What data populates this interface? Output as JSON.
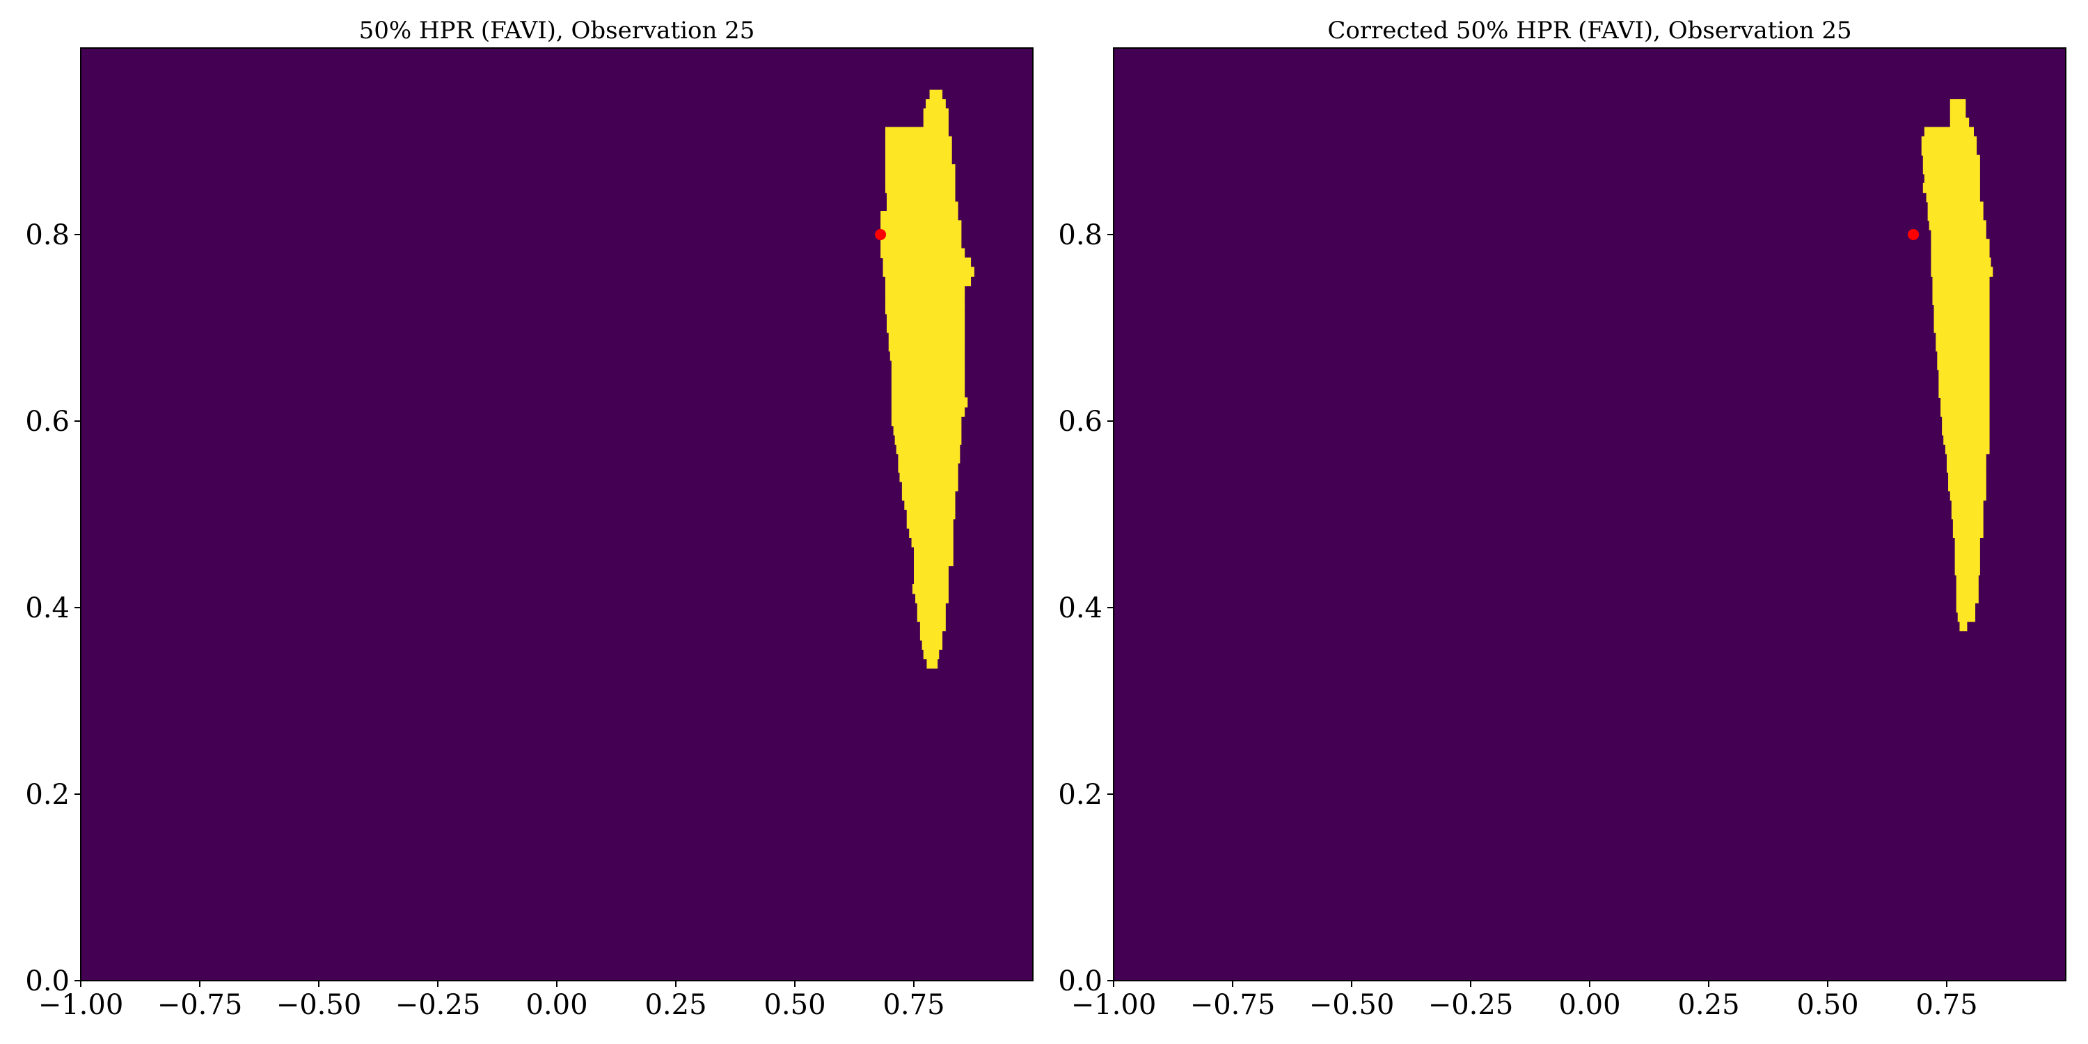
{
  "chart_data": [
    {
      "type": "heatmap",
      "title": "50% HPR (FAVI), Observation 25",
      "xlim": [
        -1.0,
        1.0
      ],
      "ylim": [
        0.0,
        1.0
      ],
      "xticks": [
        -1.0,
        -0.75,
        -0.5,
        -0.25,
        0.0,
        0.25,
        0.5,
        0.75
      ],
      "xtick_labels": [
        "−1.00",
        "−0.75",
        "−0.50",
        "−0.25",
        "0.00",
        "0.25",
        "0.50",
        "0.75"
      ],
      "yticks": [
        0.0,
        0.2,
        0.4,
        0.6,
        0.8
      ],
      "ytick_labels": [
        "0.0",
        "0.2",
        "0.4",
        "0.6",
        "0.8"
      ],
      "grid": false,
      "colors": {
        "background": "#440154",
        "region": "#fde725",
        "point": "#ff0000"
      },
      "region_rows": [
        [
          0.95,
          0.783,
          0.81
        ],
        [
          0.94,
          0.775,
          0.817
        ],
        [
          0.93,
          0.77,
          0.823
        ],
        [
          0.92,
          0.77,
          0.823
        ],
        [
          0.91,
          0.69,
          0.823
        ],
        [
          0.9,
          0.69,
          0.83
        ],
        [
          0.89,
          0.69,
          0.83
        ],
        [
          0.88,
          0.69,
          0.83
        ],
        [
          0.87,
          0.69,
          0.837
        ],
        [
          0.86,
          0.69,
          0.837
        ],
        [
          0.85,
          0.69,
          0.837
        ],
        [
          0.84,
          0.693,
          0.837
        ],
        [
          0.83,
          0.693,
          0.843
        ],
        [
          0.82,
          0.68,
          0.843
        ],
        [
          0.81,
          0.68,
          0.85
        ],
        [
          0.8,
          0.68,
          0.85
        ],
        [
          0.79,
          0.68,
          0.85
        ],
        [
          0.78,
          0.68,
          0.857
        ],
        [
          0.77,
          0.685,
          0.87
        ],
        [
          0.76,
          0.685,
          0.877
        ],
        [
          0.75,
          0.69,
          0.87
        ],
        [
          0.74,
          0.69,
          0.857
        ],
        [
          0.73,
          0.69,
          0.857
        ],
        [
          0.72,
          0.69,
          0.857
        ],
        [
          0.71,
          0.693,
          0.857
        ],
        [
          0.7,
          0.693,
          0.857
        ],
        [
          0.69,
          0.697,
          0.857
        ],
        [
          0.68,
          0.697,
          0.857
        ],
        [
          0.67,
          0.7,
          0.857
        ],
        [
          0.66,
          0.703,
          0.857
        ],
        [
          0.65,
          0.703,
          0.857
        ],
        [
          0.64,
          0.703,
          0.857
        ],
        [
          0.63,
          0.703,
          0.857
        ],
        [
          0.62,
          0.703,
          0.863
        ],
        [
          0.61,
          0.703,
          0.857
        ],
        [
          0.6,
          0.703,
          0.85
        ],
        [
          0.59,
          0.707,
          0.85
        ],
        [
          0.58,
          0.71,
          0.85
        ],
        [
          0.57,
          0.713,
          0.847
        ],
        [
          0.56,
          0.717,
          0.847
        ],
        [
          0.55,
          0.717,
          0.843
        ],
        [
          0.54,
          0.72,
          0.843
        ],
        [
          0.53,
          0.725,
          0.843
        ],
        [
          0.52,
          0.725,
          0.837
        ],
        [
          0.51,
          0.73,
          0.837
        ],
        [
          0.5,
          0.735,
          0.837
        ],
        [
          0.49,
          0.735,
          0.833
        ],
        [
          0.48,
          0.74,
          0.833
        ],
        [
          0.47,
          0.745,
          0.833
        ],
        [
          0.46,
          0.75,
          0.833
        ],
        [
          0.45,
          0.75,
          0.833
        ],
        [
          0.44,
          0.75,
          0.823
        ],
        [
          0.43,
          0.75,
          0.823
        ],
        [
          0.42,
          0.747,
          0.823
        ],
        [
          0.41,
          0.753,
          0.823
        ],
        [
          0.4,
          0.757,
          0.817
        ],
        [
          0.39,
          0.757,
          0.817
        ],
        [
          0.38,
          0.763,
          0.817
        ],
        [
          0.37,
          0.763,
          0.81
        ],
        [
          0.36,
          0.767,
          0.81
        ],
        [
          0.35,
          0.77,
          0.803
        ],
        [
          0.34,
          0.777,
          0.8
        ]
      ],
      "point": {
        "x": 0.68,
        "y": 0.8
      }
    },
    {
      "type": "heatmap",
      "title": "Corrected 50% HPR (FAVI), Observation 25",
      "xlim": [
        -1.0,
        1.0
      ],
      "ylim": [
        0.0,
        1.0
      ],
      "xticks": [
        -1.0,
        -0.75,
        -0.5,
        -0.25,
        0.0,
        0.25,
        0.5,
        0.75
      ],
      "xtick_labels": [
        "−1.00",
        "−0.75",
        "−0.50",
        "−0.25",
        "0.00",
        "0.25",
        "0.50",
        "0.75"
      ],
      "yticks": [
        0.0,
        0.2,
        0.4,
        0.6,
        0.8
      ],
      "ytick_labels": [
        "0.0",
        "0.2",
        "0.4",
        "0.6",
        "0.8"
      ],
      "grid": false,
      "colors": {
        "background": "#440154",
        "region": "#fde725",
        "point": "#ff0000"
      },
      "region_rows": [
        [
          0.94,
          0.757,
          0.79
        ],
        [
          0.93,
          0.757,
          0.79
        ],
        [
          0.92,
          0.757,
          0.797
        ],
        [
          0.91,
          0.703,
          0.807
        ],
        [
          0.9,
          0.697,
          0.813
        ],
        [
          0.89,
          0.697,
          0.813
        ],
        [
          0.88,
          0.7,
          0.82
        ],
        [
          0.87,
          0.7,
          0.82
        ],
        [
          0.86,
          0.703,
          0.82
        ],
        [
          0.85,
          0.7,
          0.82
        ],
        [
          0.84,
          0.707,
          0.82
        ],
        [
          0.83,
          0.71,
          0.827
        ],
        [
          0.82,
          0.71,
          0.827
        ],
        [
          0.81,
          0.713,
          0.833
        ],
        [
          0.8,
          0.717,
          0.833
        ],
        [
          0.79,
          0.717,
          0.84
        ],
        [
          0.78,
          0.717,
          0.84
        ],
        [
          0.77,
          0.717,
          0.843
        ],
        [
          0.76,
          0.717,
          0.847
        ],
        [
          0.75,
          0.72,
          0.84
        ],
        [
          0.74,
          0.72,
          0.84
        ],
        [
          0.73,
          0.72,
          0.84
        ],
        [
          0.72,
          0.723,
          0.84
        ],
        [
          0.71,
          0.723,
          0.84
        ],
        [
          0.7,
          0.723,
          0.84
        ],
        [
          0.69,
          0.727,
          0.84
        ],
        [
          0.68,
          0.727,
          0.84
        ],
        [
          0.67,
          0.73,
          0.84
        ],
        [
          0.66,
          0.73,
          0.84
        ],
        [
          0.65,
          0.733,
          0.84
        ],
        [
          0.64,
          0.733,
          0.84
        ],
        [
          0.63,
          0.733,
          0.84
        ],
        [
          0.62,
          0.737,
          0.84
        ],
        [
          0.61,
          0.737,
          0.84
        ],
        [
          0.6,
          0.74,
          0.84
        ],
        [
          0.59,
          0.74,
          0.84
        ],
        [
          0.58,
          0.743,
          0.84
        ],
        [
          0.57,
          0.747,
          0.84
        ],
        [
          0.56,
          0.75,
          0.833
        ],
        [
          0.55,
          0.75,
          0.833
        ],
        [
          0.54,
          0.753,
          0.833
        ],
        [
          0.53,
          0.753,
          0.833
        ],
        [
          0.52,
          0.757,
          0.833
        ],
        [
          0.51,
          0.76,
          0.827
        ],
        [
          0.5,
          0.76,
          0.827
        ],
        [
          0.49,
          0.763,
          0.827
        ],
        [
          0.48,
          0.763,
          0.827
        ],
        [
          0.47,
          0.767,
          0.82
        ],
        [
          0.46,
          0.767,
          0.82
        ],
        [
          0.45,
          0.767,
          0.82
        ],
        [
          0.44,
          0.767,
          0.82
        ],
        [
          0.43,
          0.77,
          0.817
        ],
        [
          0.42,
          0.77,
          0.817
        ],
        [
          0.41,
          0.77,
          0.817
        ],
        [
          0.4,
          0.77,
          0.81
        ],
        [
          0.39,
          0.773,
          0.81
        ],
        [
          0.38,
          0.777,
          0.793
        ]
      ],
      "point": {
        "x": 0.68,
        "y": 0.8
      }
    }
  ]
}
